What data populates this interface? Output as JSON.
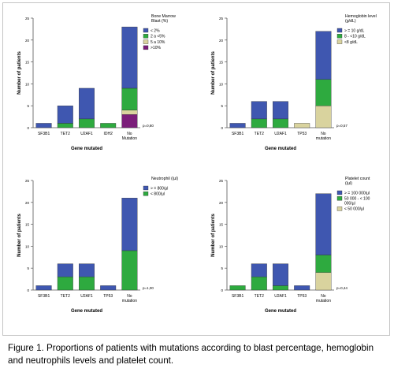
{
  "colors": {
    "c1": "#3f57b0",
    "c2": "#2eaa3f",
    "c3": "#d9d39e",
    "c4": "#7b1e7a",
    "axis": "#555555",
    "text": "#000000"
  },
  "caption": "Figure 1. Proportions of patients with mutations according to blast percentage, hemoglobin and neutrophils levels and platelet count.",
  "chart_data": [
    {
      "type": "bar",
      "stacked": true,
      "legend_position": "top-right",
      "categories": [
        "SF3B1",
        "TET2",
        "U2AF1",
        "IDH2",
        "No Mutation"
      ],
      "xlabel": "Gene mutated",
      "ylabel": "Number of patients",
      "ylim": [
        0,
        25
      ],
      "yticks": [
        0,
        5,
        10,
        15,
        20,
        25
      ],
      "ytick_labels": [
        "0",
        "5",
        "10",
        "15",
        "20",
        "25"
      ],
      "legend_title": "Bone Marrow Blast (%)",
      "series": [
        {
          "name": ">10%",
          "color": "#7b1e7a",
          "values": [
            0,
            0,
            0,
            0,
            3
          ]
        },
        {
          "name": "5 a 10%",
          "color": "#d9d39e",
          "values": [
            0,
            0,
            0,
            0,
            1
          ]
        },
        {
          "name": "2 a <5%",
          "color": "#2eaa3f",
          "values": [
            0,
            1,
            2,
            1,
            5
          ]
        },
        {
          "name": "< 2%",
          "color": "#3f57b0",
          "values": [
            1,
            4,
            7,
            0,
            14
          ]
        }
      ],
      "legend_order": [
        3,
        2,
        1,
        0
      ],
      "annotation": "p=0,80"
    },
    {
      "type": "bar",
      "stacked": true,
      "legend_position": "top-right",
      "categories": [
        "SF3B1",
        "TET2",
        "U2AF1",
        "TP53",
        "No mutation"
      ],
      "xlabel": "Gene mutated",
      "ylabel": "Number of patients",
      "ylim": [
        0,
        25
      ],
      "yticks": [
        0,
        5,
        10,
        15,
        20,
        25
      ],
      "ytick_labels": [
        "0",
        "5",
        "10",
        "15",
        "20",
        "25"
      ],
      "legend_title": "Hemoglobin level (g/dL)",
      "series": [
        {
          "name": "<8 g/dL",
          "color": "#d9d39e",
          "values": [
            0,
            0,
            0,
            1,
            5
          ]
        },
        {
          "name": "8 - <10 g/dL",
          "color": "#2eaa3f",
          "values": [
            0,
            2,
            2,
            0,
            6
          ]
        },
        {
          "name": "> = 10 g/dL",
          "color": "#3f57b0",
          "values": [
            1,
            4,
            4,
            0,
            11
          ]
        }
      ],
      "legend_order": [
        2,
        1,
        0
      ],
      "annotation": "p=0,57"
    },
    {
      "type": "bar",
      "stacked": true,
      "legend_position": "top-right",
      "categories": [
        "SF3B1",
        "TET2",
        "U2AF1",
        "TP53",
        "No mutation"
      ],
      "xlabel": "Gene mutated",
      "ylabel": "Number of patients",
      "ylim": [
        0,
        25
      ],
      "yticks": [
        0,
        5,
        10,
        15,
        20,
        25
      ],
      "ytick_labels": [
        "0",
        "5",
        "10",
        "15",
        "20",
        "25"
      ],
      "legend_title": "Neutrophil (/µl)",
      "series": [
        {
          "name": "< 800/µl",
          "color": "#2eaa3f",
          "values": [
            0,
            3,
            3,
            0,
            9
          ]
        },
        {
          "name": "> = 800/µl",
          "color": "#3f57b0",
          "values": [
            1,
            3,
            3,
            1,
            12
          ]
        }
      ],
      "legend_order": [
        1,
        0
      ],
      "annotation": "p=1,00"
    },
    {
      "type": "bar",
      "stacked": true,
      "legend_position": "top-right",
      "categories": [
        "SF3B1",
        "TET2",
        "U2AF1",
        "TP53",
        "No mutation"
      ],
      "xlabel": "Gene mutated",
      "ylabel": "Number of patients",
      "ylim": [
        0,
        25
      ],
      "yticks": [
        0,
        5,
        10,
        15,
        20,
        25
      ],
      "ytick_labels": [
        "0",
        "5",
        "10",
        "15",
        "20",
        "25"
      ],
      "legend_title": "Platelet count (/µl)",
      "series": [
        {
          "name": "< 50 000/µl",
          "color": "#d9d39e",
          "values": [
            0,
            0,
            0,
            0,
            4
          ]
        },
        {
          "name": "50 000 - < 100 000/µl",
          "color": "#2eaa3f",
          "values": [
            1,
            3,
            1,
            0,
            4
          ]
        },
        {
          "name": "> = 100 000/µl",
          "color": "#3f57b0",
          "values": [
            0,
            3,
            5,
            1,
            14
          ]
        }
      ],
      "legend_order": [
        2,
        1,
        0
      ],
      "annotation": "p=0,44"
    }
  ]
}
